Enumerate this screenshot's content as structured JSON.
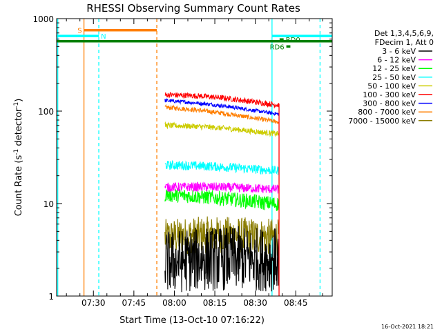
{
  "chart_data": {
    "type": "line",
    "title": "RHESSI Observing Summary Count Rates",
    "xlabel": "Start Time (13-Oct-10 07:16:22)",
    "ylabel_parts": [
      "Count Rate (s",
      "-1",
      " detector",
      "-1",
      ")"
    ],
    "yscale": "log",
    "ylim": [
      1,
      1000
    ],
    "xlim_minutes": [
      16.37,
      118.5
    ],
    "x_unit": "minutes after 07:00 UT",
    "x_ticks": [
      {
        "value": 30,
        "label": "07:30"
      },
      {
        "value": 45,
        "label": "07:45"
      },
      {
        "value": 60,
        "label": "08:00"
      },
      {
        "value": 75,
        "label": "08:15"
      },
      {
        "value": 90,
        "label": "08:30"
      },
      {
        "value": 105,
        "label": "08:45"
      }
    ],
    "y_ticks": [
      {
        "value": 1,
        "label": "1"
      },
      {
        "value": 10,
        "label": "10"
      },
      {
        "value": 100,
        "label": "100"
      },
      {
        "value": 1000,
        "label": "1000"
      }
    ],
    "data_interval_minutes": [
      56.5,
      98.8
    ],
    "legend_header": [
      "Det 1,3,4,5,6,9,",
      "FDecim 1, Att 0"
    ],
    "series": [
      {
        "name": "7000 - 15000 keV",
        "color": "#8b7d00",
        "level_start": 4.3,
        "level_end": 4.5,
        "noise": 0.2,
        "arc": 0.05
      },
      {
        "name": "800 - 7000 keV",
        "color": "#ff7f00",
        "level_start": 110,
        "level_end": 78,
        "noise": 0.025,
        "arc": 0.03
      },
      {
        "name": "300 - 800 keV",
        "color": "#0000ff",
        "level_start": 130,
        "level_end": 95,
        "noise": 0.02,
        "arc": 0.03
      },
      {
        "name": "100 - 300 keV",
        "color": "#ff0000",
        "level_start": 150,
        "level_end": 120,
        "noise": 0.03,
        "arc": 0.04
      },
      {
        "name": "50 - 100 keV",
        "color": "#cccc00",
        "level_start": 70,
        "level_end": 58,
        "noise": 0.03,
        "arc": 0.03
      },
      {
        "name": "25 - 50 keV",
        "color": "#00ffff",
        "level_start": 26,
        "level_end": 23,
        "noise": 0.05,
        "arc": 0.02
      },
      {
        "name": "12 - 25 keV",
        "color": "#00ff00",
        "level_start": 12.5,
        "level_end": 10,
        "noise": 0.08,
        "arc": 0.02
      },
      {
        "name": "6 - 12 keV",
        "color": "#ff00ff",
        "level_start": 15,
        "level_end": 14.5,
        "noise": 0.05,
        "arc": 0.02
      },
      {
        "name": "3 - 6 keV",
        "color": "#000000",
        "level_start": 2.3,
        "level_end": 2.6,
        "noise": 0.35,
        "arc": 0.05
      }
    ],
    "legend_order": [
      {
        "label": "3 - 6 keV",
        "color": "#000000"
      },
      {
        "label": "6 - 12 keV",
        "color": "#ff00ff"
      },
      {
        "label": "12 - 25 keV",
        "color": "#00ff00"
      },
      {
        "label": "25 - 50 keV",
        "color": "#00ffff"
      },
      {
        "label": "50 - 100 keV",
        "color": "#cccc00"
      },
      {
        "label": "100 - 300 keV",
        "color": "#ff0000"
      },
      {
        "label": "300 - 800 keV",
        "color": "#0000ff"
      },
      {
        "label": "800 - 7000 keV",
        "color": "#ff7f00"
      },
      {
        "label": "7000 - 15000 keV",
        "color": "#8b7d00"
      }
    ],
    "vertical_markers": [
      {
        "minute": 16.8,
        "color": "#00ffff",
        "style": "solid"
      },
      {
        "minute": 26.5,
        "color": "#ff7f00",
        "style": "solid"
      },
      {
        "minute": 32.0,
        "color": "#00ffff",
        "style": "dashed"
      },
      {
        "minute": 53.5,
        "color": "#ff7f00",
        "style": "dashed"
      },
      {
        "minute": 96.2,
        "color": "#00ffff",
        "style": "solid"
      },
      {
        "minute": 114.0,
        "color": "#00ffff",
        "style": "dashed"
      }
    ],
    "status_bars": [
      {
        "label": "S",
        "color": "#ff7f00",
        "start": 26.5,
        "end": 53.5,
        "level": 750,
        "label_pos": "left"
      },
      {
        "label": "N",
        "color": "#00ffff",
        "start": 16.37,
        "end": 32.0,
        "level": 650,
        "label_pos": "right"
      },
      {
        "label": "",
        "color": "#00ffff",
        "start": 96.2,
        "end": 118.5,
        "level": 650,
        "label_pos": "none"
      },
      {
        "label": "",
        "color": "#008000",
        "start": 16.37,
        "end": 118.5,
        "level": 570,
        "label_pos": "none"
      },
      {
        "label": "RD0",
        "color": "#008000",
        "start": 99.0,
        "end": 100.5,
        "level": 595,
        "label_pos": "right"
      },
      {
        "label": "RD6",
        "color": "#008000",
        "start": 101.5,
        "end": 103.0,
        "level": 500,
        "label_pos": "left"
      }
    ],
    "footer_timestamp": "16-Oct-2021 18:21"
  }
}
